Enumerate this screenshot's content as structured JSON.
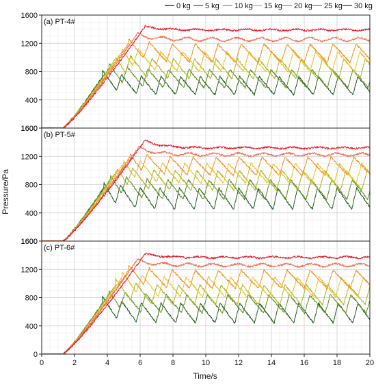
{
  "chart_data": {
    "type": "line",
    "xlabel": "Time/s",
    "ylabel": "Pressure/Pa",
    "xlim": [
      0,
      20
    ],
    "ylim": [
      0,
      1600
    ],
    "x_ticks": [
      "0",
      "2",
      "4",
      "6",
      "8",
      "10",
      "12",
      "14",
      "16",
      "18",
      "20"
    ],
    "grid": true,
    "legend_position": "top-right",
    "legend": [
      {
        "name": "0 kg",
        "color": "#1f5e1f"
      },
      {
        "name": "5 kg",
        "color": "#5e8e1e"
      },
      {
        "name": "10 kg",
        "color": "#a8b520"
      },
      {
        "name": "15 kg",
        "color": "#e8c21c"
      },
      {
        "name": "20 kg",
        "color": "#f0901c"
      },
      {
        "name": "25 kg",
        "color": "#f26a4c"
      },
      {
        "name": "30 kg",
        "color": "#e8192a"
      }
    ],
    "panels": [
      {
        "label": "(a) PT-4#",
        "y_ticks": [
          "400",
          "800",
          "1200",
          "1600"
        ],
        "y_bottom_label": "1600",
        "series": [
          {
            "name": "0 kg",
            "ramp_start": 1.3,
            "ramp_end": 3.7,
            "peak": 730,
            "mean": 600,
            "amplitude": 130,
            "period": 1.2
          },
          {
            "name": "5 kg",
            "ramp_start": 1.3,
            "ramp_end": 4.1,
            "peak": 850,
            "mean": 700,
            "amplitude": 130,
            "period": 1.25
          },
          {
            "name": "10 kg",
            "ramp_start": 1.3,
            "ramp_end": 4.5,
            "peak": 980,
            "mean": 840,
            "amplitude": 140,
            "period": 1.3
          },
          {
            "name": "15 kg",
            "ramp_start": 1.3,
            "ramp_end": 4.9,
            "peak": 1090,
            "mean": 940,
            "amplitude": 140,
            "period": 1.35
          },
          {
            "name": "20 kg",
            "ramp_start": 1.3,
            "ramp_end": 5.3,
            "peak": 1200,
            "mean": 1060,
            "amplitude": 130,
            "period": 1.4
          },
          {
            "name": "25 kg",
            "ramp_start": 1.3,
            "ramp_end": 5.8,
            "peak": 1330,
            "mean": 1255,
            "amplitude": 25,
            "period": 1.5
          },
          {
            "name": "30 kg",
            "ramp_start": 1.3,
            "ramp_end": 6.3,
            "peak": 1440,
            "mean": 1390,
            "amplitude": 10,
            "period": 1.5
          }
        ]
      },
      {
        "label": "(b) PT-5#",
        "y_ticks": [
          "400",
          "800",
          "1200",
          "1600"
        ],
        "y_bottom_label": "1600",
        "series": [
          {
            "name": "0 kg",
            "ramp_start": 1.3,
            "ramp_end": 3.8,
            "peak": 760,
            "mean": 600,
            "amplitude": 150,
            "period": 1.2
          },
          {
            "name": "5 kg",
            "ramp_start": 1.3,
            "ramp_end": 4.2,
            "peak": 880,
            "mean": 730,
            "amplitude": 140,
            "period": 1.25
          },
          {
            "name": "10 kg",
            "ramp_start": 1.3,
            "ramp_end": 4.6,
            "peak": 1000,
            "mean": 860,
            "amplitude": 140,
            "period": 1.3
          },
          {
            "name": "15 kg",
            "ramp_start": 1.3,
            "ramp_end": 5.0,
            "peak": 1100,
            "mean": 960,
            "amplitude": 140,
            "period": 1.35
          },
          {
            "name": "20 kg",
            "ramp_start": 1.3,
            "ramp_end": 5.4,
            "peak": 1200,
            "mean": 1060,
            "amplitude": 130,
            "period": 1.4
          },
          {
            "name": "25 kg",
            "ramp_start": 1.3,
            "ramp_end": 5.9,
            "peak": 1330,
            "mean": 1225,
            "amplitude": 20,
            "period": 1.5
          },
          {
            "name": "30 kg",
            "ramp_start": 1.3,
            "ramp_end": 6.3,
            "peak": 1430,
            "mean": 1320,
            "amplitude": 10,
            "period": 1.5
          }
        ]
      },
      {
        "label": "(c) PT-6#",
        "y_ticks": [
          "0",
          "400",
          "800",
          "1200",
          "1600"
        ],
        "y_bottom_label": "0",
        "series": [
          {
            "name": "0 kg",
            "ramp_start": 1.3,
            "ramp_end": 3.7,
            "peak": 720,
            "mean": 580,
            "amplitude": 140,
            "period": 1.2
          },
          {
            "name": "5 kg",
            "ramp_start": 1.3,
            "ramp_end": 4.1,
            "peak": 850,
            "mean": 710,
            "amplitude": 130,
            "period": 1.25
          },
          {
            "name": "10 kg",
            "ramp_start": 1.3,
            "ramp_end": 4.5,
            "peak": 980,
            "mean": 840,
            "amplitude": 140,
            "period": 1.3
          },
          {
            "name": "15 kg",
            "ramp_start": 1.3,
            "ramp_end": 4.9,
            "peak": 1090,
            "mean": 950,
            "amplitude": 140,
            "period": 1.35
          },
          {
            "name": "20 kg",
            "ramp_start": 1.3,
            "ramp_end": 5.3,
            "peak": 1190,
            "mean": 1060,
            "amplitude": 130,
            "period": 1.4
          },
          {
            "name": "25 kg",
            "ramp_start": 1.3,
            "ramp_end": 5.8,
            "peak": 1330,
            "mean": 1260,
            "amplitude": 20,
            "period": 1.5
          },
          {
            "name": "30 kg",
            "ramp_start": 1.3,
            "ramp_end": 6.3,
            "peak": 1420,
            "mean": 1370,
            "amplitude": 10,
            "period": 1.5
          }
        ]
      }
    ]
  }
}
